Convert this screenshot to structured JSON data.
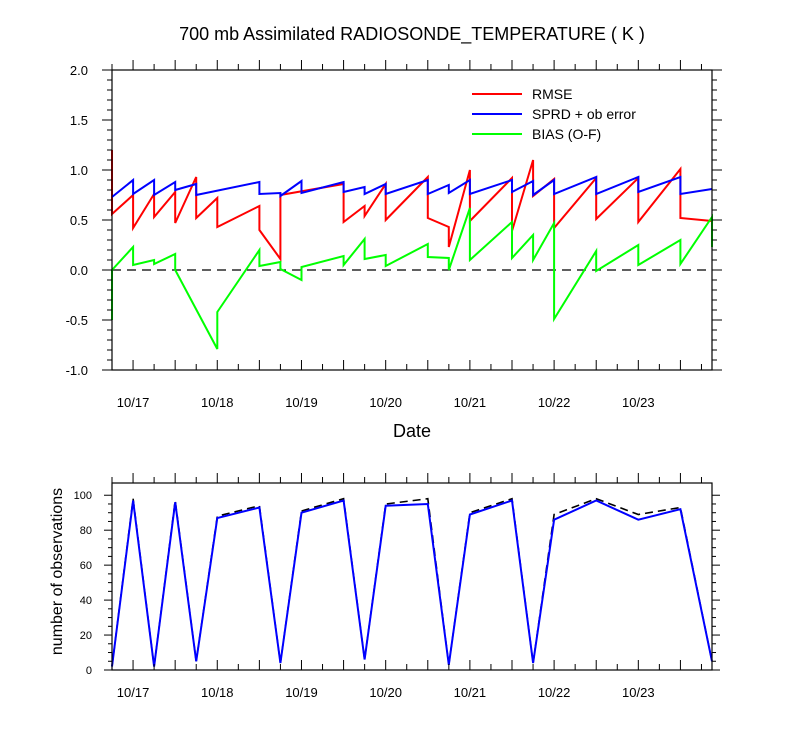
{
  "title": "700 mb Assimilated RADIOSONDE_TEMPERATURE ( K )",
  "colors": {
    "rmse": "#ff0000",
    "sprd": "#0000ff",
    "bias": "#00ff00",
    "axis": "#000000"
  },
  "chart_data": [
    {
      "type": "line",
      "title": "700 mb Assimilated RADIOSONDE_TEMPERATURE ( K )",
      "xlabel": "Date",
      "ylabel": "",
      "ylim": [
        -1.0,
        2.0
      ],
      "xlim": [
        "10/16 18:00",
        "10/23 21:00"
      ],
      "x_tick_labels": [
        "10/17",
        "10/18",
        "10/19",
        "10/20",
        "10/21",
        "10/22",
        "10/23"
      ],
      "y_tick_labels": [
        "-1.0",
        "-0.5",
        "0.0",
        "0.5",
        "1.0",
        "1.5",
        "2.0"
      ],
      "zero_line": true,
      "legend_position": "top-right",
      "series": [
        {
          "name": "RMSE",
          "color": "#ff0000",
          "x": [
            "10/16 18:00",
            "10/16 18:00",
            "10/16 18:00",
            "10/17 00:00",
            "10/17 00:00",
            "10/17 06:00",
            "10/17 06:00",
            "10/17 12:00",
            "10/17 12:00",
            "10/17 18:00",
            "10/17 18:00",
            "10/18 00:00",
            "10/18 00:00",
            "10/18 12:00",
            "10/18 12:00",
            "10/18 18:00",
            "10/18 18:00",
            "10/19 12:00",
            "10/19 12:00",
            "10/19 18:00",
            "10/19 18:00",
            "10/20 00:00",
            "10/20 00:00",
            "10/20 12:00",
            "10/20 12:00",
            "10/20 18:00",
            "10/20 18:00",
            "10/21 00:00",
            "10/21 00:00",
            "10/21 12:00",
            "10/21 12:00",
            "10/21 18:00",
            "10/21 18:00",
            "10/22 00:00",
            "10/22 00:00",
            "10/22 12:00",
            "10/22 12:00",
            "10/23 00:00",
            "10/23 00:00",
            "10/23 12:00",
            "10/23 12:00",
            "10/23 21:00"
          ],
          "values": [
            1.2,
            0.56,
            0.56,
            0.75,
            0.42,
            0.76,
            0.53,
            0.78,
            0.47,
            0.93,
            0.52,
            0.72,
            0.43,
            0.64,
            0.4,
            0.11,
            0.75,
            0.86,
            0.48,
            0.64,
            0.54,
            0.86,
            0.5,
            0.93,
            0.52,
            0.43,
            0.23,
            1.0,
            0.49,
            0.92,
            0.39,
            1.1,
            0.74,
            0.91,
            0.42,
            0.92,
            0.51,
            0.92,
            0.48,
            1.01,
            0.52,
            0.49
          ]
        },
        {
          "name": "SPRD + ob error",
          "color": "#0000ff",
          "x": [
            "10/16 18:00",
            "10/17 00:00",
            "10/17 00:00",
            "10/17 06:00",
            "10/17 06:00",
            "10/17 12:00",
            "10/17 12:00",
            "10/17 18:00",
            "10/17 18:00",
            "10/18 12:00",
            "10/18 12:00",
            "10/18 18:00",
            "10/18 18:00",
            "10/19 00:00",
            "10/19 00:00",
            "10/19 12:00",
            "10/19 12:00",
            "10/19 18:00",
            "10/19 18:00",
            "10/20 00:00",
            "10/20 00:00",
            "10/20 12:00",
            "10/20 12:00",
            "10/20 18:00",
            "10/20 18:00",
            "10/21 00:00",
            "10/21 00:00",
            "10/21 12:00",
            "10/21 12:00",
            "10/21 18:00",
            "10/21 18:00",
            "10/22 00:00",
            "10/22 00:00",
            "10/22 12:00",
            "10/22 12:00",
            "10/23 00:00",
            "10/23 00:00",
            "10/23 12:00",
            "10/23 12:00",
            "10/23 21:00"
          ],
          "values": [
            0.73,
            0.9,
            0.76,
            0.9,
            0.75,
            0.88,
            0.8,
            0.86,
            0.75,
            0.88,
            0.76,
            0.77,
            0.74,
            0.89,
            0.77,
            0.88,
            0.78,
            0.83,
            0.76,
            0.86,
            0.76,
            0.9,
            0.76,
            0.85,
            0.77,
            0.9,
            0.76,
            0.9,
            0.78,
            0.89,
            0.75,
            0.9,
            0.76,
            0.93,
            0.76,
            0.93,
            0.78,
            0.93,
            0.76,
            0.81
          ]
        },
        {
          "name": "BIAS (O-F)",
          "color": "#00ff00",
          "x": [
            "10/16 18:00",
            "10/16 18:00",
            "10/17 00:00",
            "10/17 00:00",
            "10/17 06:00",
            "10/17 06:00",
            "10/17 12:00",
            "10/17 12:00",
            "10/18 00:00",
            "10/18 00:00",
            "10/18 12:00",
            "10/18 12:00",
            "10/18 18:00",
            "10/18 18:00",
            "10/19 00:00",
            "10/19 00:00",
            "10/19 12:00",
            "10/19 12:00",
            "10/19 18:00",
            "10/19 18:00",
            "10/20 00:00",
            "10/20 00:00",
            "10/20 12:00",
            "10/20 12:00",
            "10/20 18:00",
            "10/20 18:00",
            "10/21 00:00",
            "10/21 00:00",
            "10/21 12:00",
            "10/21 12:00",
            "10/21 18:00",
            "10/21 18:00",
            "10/22 00:00",
            "10/22 00:00",
            "10/22 12:00",
            "10/22 12:00",
            "10/23 00:00",
            "10/23 00:00",
            "10/23 12:00",
            "10/23 12:00",
            "10/23 21:00",
            "10/23 21:00"
          ],
          "values": [
            -0.5,
            0.0,
            0.23,
            0.05,
            0.1,
            0.06,
            0.16,
            0.0,
            -0.79,
            -0.42,
            0.2,
            0.04,
            0.08,
            0.01,
            -0.1,
            0.03,
            0.14,
            0.05,
            0.31,
            0.11,
            0.15,
            0.04,
            0.26,
            0.13,
            0.12,
            0.0,
            0.62,
            0.1,
            0.48,
            0.12,
            0.35,
            0.1,
            0.47,
            -0.49,
            0.19,
            -0.01,
            0.25,
            0.05,
            0.3,
            0.06,
            0.53,
            0.23
          ]
        }
      ]
    },
    {
      "type": "line",
      "title": "",
      "xlabel": "",
      "ylabel": "number of observations",
      "ylim": [
        0,
        107
      ],
      "xlim": [
        "10/16 18:00",
        "10/23 21:00"
      ],
      "x_tick_labels": [
        "10/17",
        "10/18",
        "10/19",
        "10/20",
        "10/21",
        "10/22",
        "10/23"
      ],
      "y_tick_labels": [
        "0",
        "20",
        "40",
        "60",
        "80",
        "100"
      ],
      "series": [
        {
          "name": "",
          "color": "#0000ff",
          "style": "solid",
          "x": [
            "10/16 18:00",
            "10/17 00:00",
            "10/17 06:00",
            "10/17 12:00",
            "10/17 18:00",
            "10/18 00:00",
            "10/18 12:00",
            "10/18 18:00",
            "10/19 00:00",
            "10/19 12:00",
            "10/19 18:00",
            "10/20 00:00",
            "10/20 12:00",
            "10/20 18:00",
            "10/21 00:00",
            "10/21 12:00",
            "10/21 18:00",
            "10/22 00:00",
            "10/22 12:00",
            "10/23 00:00",
            "10/23 12:00",
            "10/23 21:00"
          ],
          "values": [
            2,
            97,
            2,
            96,
            5,
            87,
            93,
            4,
            90,
            97,
            6,
            94,
            95,
            3,
            89,
            97,
            4,
            86,
            97,
            86,
            92,
            5
          ]
        },
        {
          "name": "",
          "color": "#000000",
          "style": "dashed",
          "x": [
            "10/16 18:00",
            "10/17 00:00",
            "10/17 06:00",
            "10/17 12:00",
            "10/17 18:00",
            "10/18 00:00",
            "10/18 12:00",
            "10/18 18:00",
            "10/19 00:00",
            "10/19 12:00",
            "10/19 18:00",
            "10/20 00:00",
            "10/20 12:00",
            "10/20 18:00",
            "10/21 00:00",
            "10/21 12:00",
            "10/21 18:00",
            "10/22 00:00",
            "10/22 12:00",
            "10/23 00:00",
            "10/23 12:00",
            "10/23 21:00"
          ],
          "values": [
            2,
            98,
            2,
            97,
            5,
            88,
            94,
            4,
            91,
            98,
            6,
            95,
            98,
            3,
            90,
            98,
            4,
            89,
            98,
            89,
            93,
            5
          ]
        }
      ]
    }
  ]
}
